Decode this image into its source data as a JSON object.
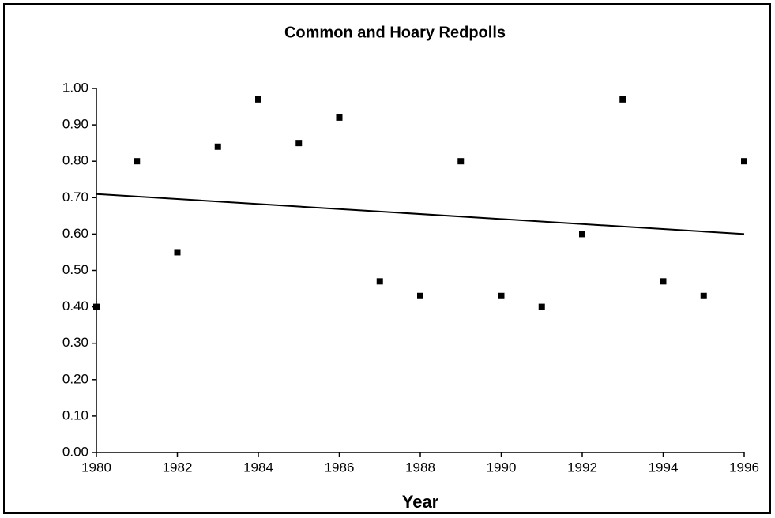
{
  "chart_data": {
    "type": "scatter",
    "title": "Common and Hoary Redpolls",
    "x_label": "Year",
    "series": [
      {
        "color": "#000000",
        "x": [
          1980,
          1981,
          1982,
          1983,
          1984,
          1985,
          1986,
          1987,
          1988,
          1989,
          1990,
          1991,
          1992,
          1993,
          1994,
          1995,
          1996
        ],
        "values": [
          0.4,
          0.8,
          0.55,
          0.84,
          0.97,
          0.85,
          0.92,
          0.47,
          0.43,
          0.8,
          0.43,
          0.4,
          0.6,
          0.97,
          0.47,
          0.43,
          0.8
        ]
      }
    ],
    "trendline": {
      "color": "#000000",
      "x": [
        1980,
        1996
      ],
      "values": [
        0.71,
        0.6
      ]
    },
    "xlim": [
      1980,
      1996
    ],
    "xticks": [
      1980,
      1982,
      1984,
      1986,
      1988,
      1990,
      1992,
      1994,
      1996
    ],
    "ylim": [
      0,
      1
    ],
    "yticks": [
      {
        "value": 0,
        "label": "0.00"
      },
      {
        "value": 0.1,
        "label": "0.10"
      },
      {
        "value": 0.2,
        "label": "0.20"
      },
      {
        "value": 0.3,
        "label": "0.30"
      },
      {
        "value": 0.4,
        "label": "0.40"
      },
      {
        "value": 0.5,
        "label": "0.50"
      },
      {
        "value": 0.6,
        "label": "0.60"
      },
      {
        "value": 0.7,
        "label": "0.70"
      },
      {
        "value": 0.8,
        "label": "0.80"
      },
      {
        "value": 0.9,
        "label": "0.90"
      },
      {
        "value": 1,
        "label": "1.00"
      }
    ],
    "grid": false
  }
}
